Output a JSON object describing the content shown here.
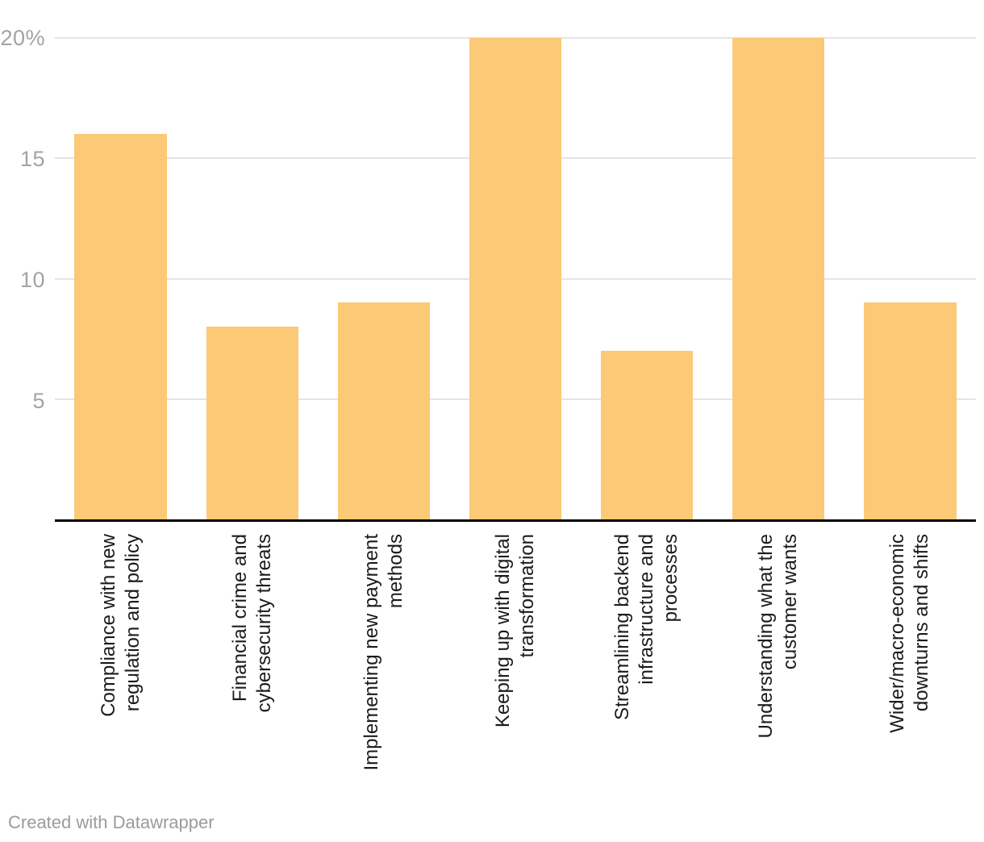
{
  "chart_data": {
    "type": "bar",
    "title": "",
    "categories": [
      "Compliance with new regulation and policy",
      "Financial crime and cybersecurity threats",
      "Implementing new payment methods",
      "Keeping up with digital transformation",
      "Streamlining backend infrastructure and processes",
      "Understanding what the customer wants",
      "Wider/macro-economic downturns and shifts"
    ],
    "categories_wrapped": [
      "Compliance with new\nregulation and policy",
      "Financial crime and\ncybersecurity threats",
      "Implementing new payment\nmethods",
      "Keeping up with digital\ntransformation",
      "Streamlining backend\ninfrastructure and\nprocesses",
      "Understanding what the\ncustomer wants",
      "Wider/macro-economic\ndownturns and shifts"
    ],
    "values": [
      16,
      8,
      9,
      20,
      7,
      20,
      9
    ],
    "unit": "%",
    "xlabel": "",
    "ylabel": "",
    "ylim": [
      0,
      20
    ],
    "yticks": [
      {
        "label": "5",
        "value": 5
      },
      {
        "label": "10",
        "value": 10
      },
      {
        "label": "15",
        "value": 15
      },
      {
        "label": "20%",
        "value": 20
      }
    ],
    "grid": true,
    "legend": "none",
    "bar_color": "#FCC977",
    "gridline_color": "#e4e4e4",
    "axis_line_color": "#000000",
    "tick_label_color": "#a3a3a3",
    "category_label_color": "#1b1b1b"
  },
  "footer": {
    "credit": "Created with Datawrapper"
  }
}
